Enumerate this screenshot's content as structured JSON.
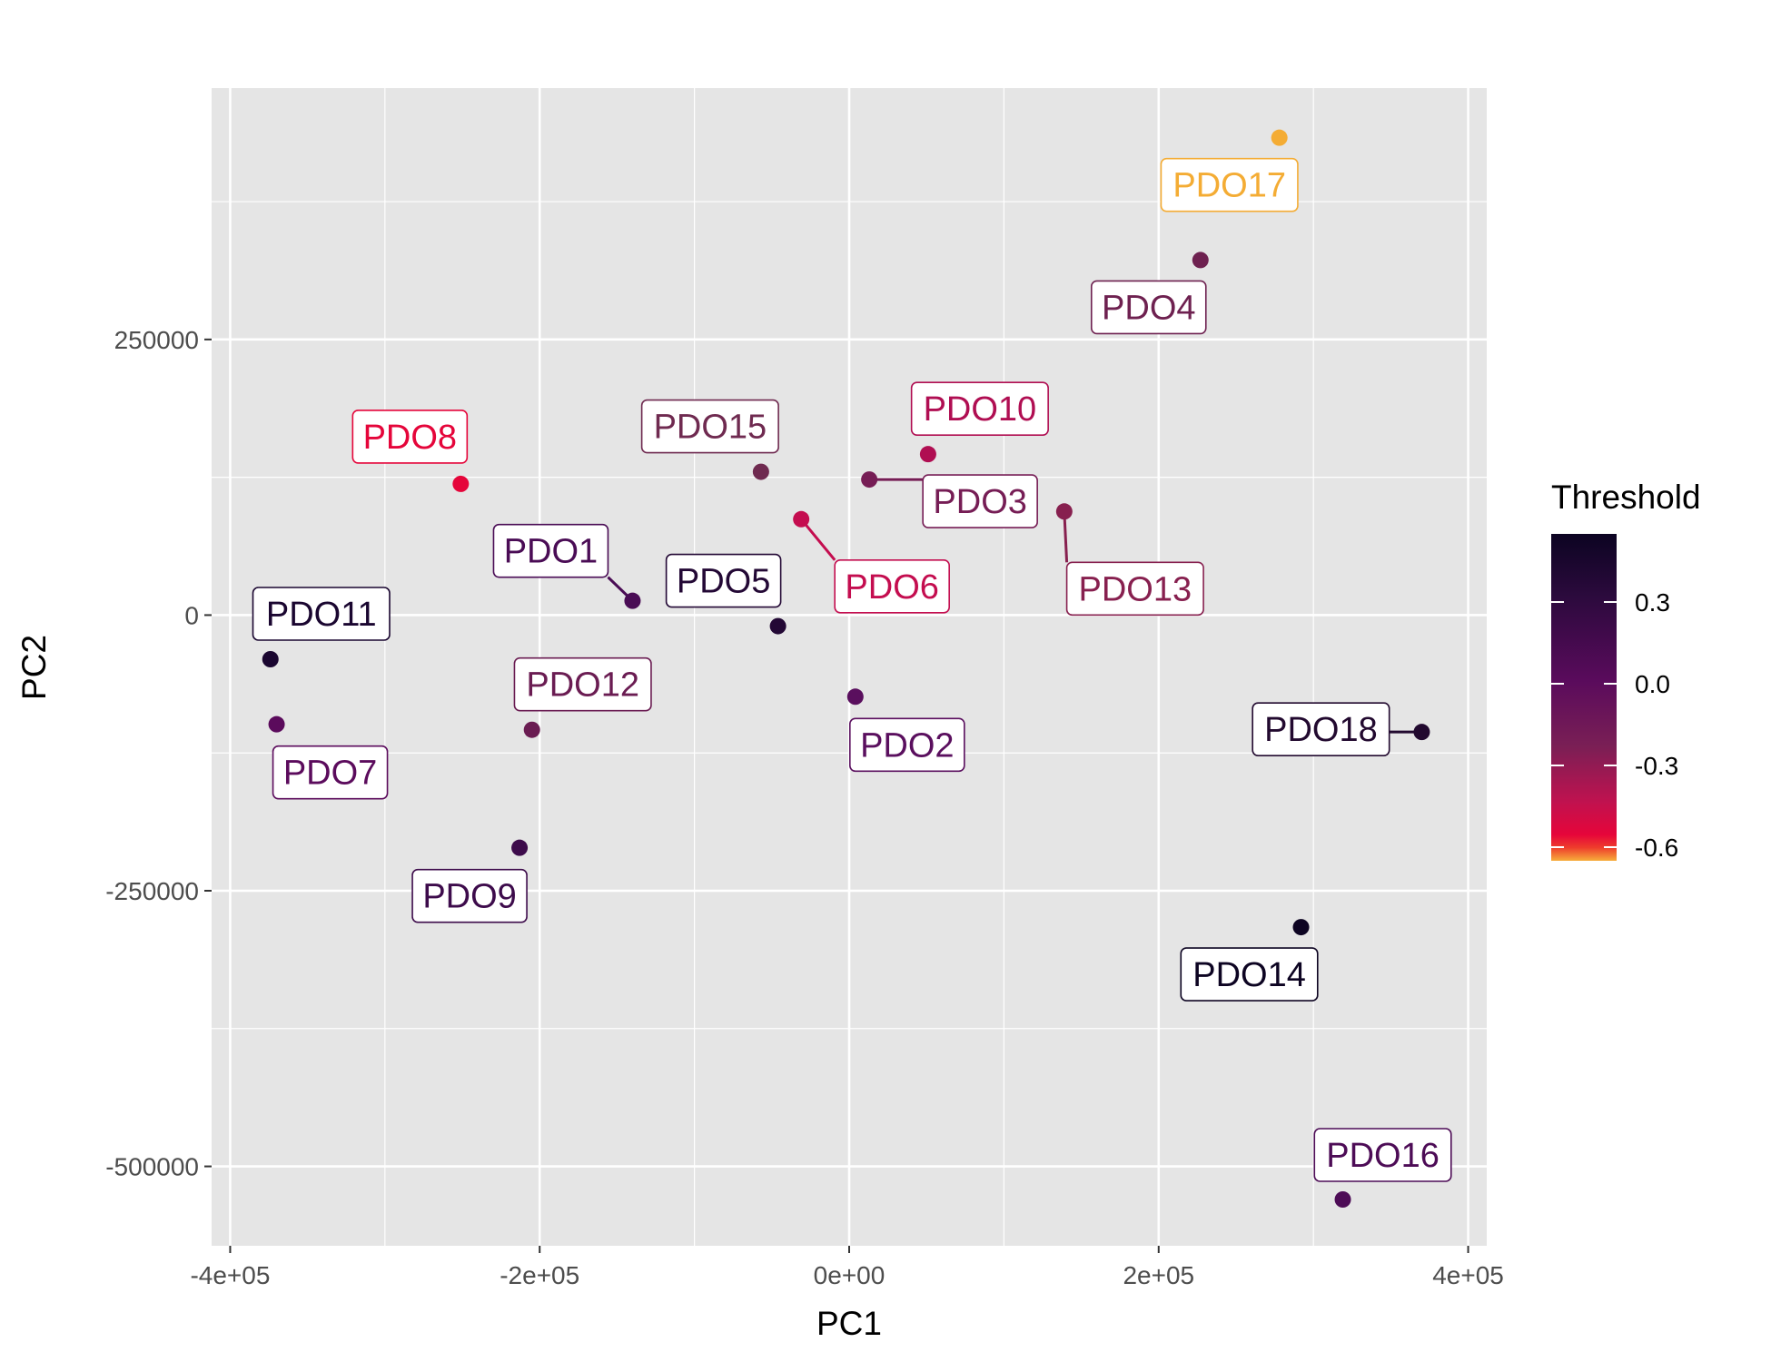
{
  "chart_data": {
    "type": "scatter",
    "xlabel": "PC1",
    "ylabel": "PC2",
    "xlim": [
      -412000,
      412000
    ],
    "ylim": [
      -572000,
      478000
    ],
    "x_ticks": [
      -400000,
      -200000,
      0,
      200000,
      400000
    ],
    "x_tick_labels": [
      "-4e+05",
      "-2e+05",
      "0e+00",
      "2e+05",
      "4e+05"
    ],
    "y_ticks": [
      250000,
      0,
      -250000,
      -500000
    ],
    "y_tick_labels": [
      "250000",
      "0",
      "-250000",
      "-500000"
    ],
    "grid": true,
    "legend": {
      "title": "Threshold",
      "placement": "right",
      "range": [
        -0.65,
        0.55
      ],
      "breaks": [
        0.3,
        0.0,
        -0.3,
        -0.6
      ],
      "break_labels": [
        "0.3",
        "0.0",
        "-0.3",
        "-0.6"
      ]
    },
    "points": [
      {
        "label": "PDO1",
        "x": -140000,
        "y": 13000,
        "color": "#4a0c55"
      },
      {
        "label": "PDO2",
        "x": 4000,
        "y": -74000,
        "color": "#5a0f5e"
      },
      {
        "label": "PDO3",
        "x": 13000,
        "y": 123000,
        "color": "#761d55"
      },
      {
        "label": "PDO4",
        "x": 227000,
        "y": 322000,
        "color": "#6e2150"
      },
      {
        "label": "PDO5",
        "x": -46000,
        "y": -10000,
        "color": "#230835"
      },
      {
        "label": "PDO6",
        "x": -31000,
        "y": 87000,
        "color": "#c40d4f"
      },
      {
        "label": "PDO7",
        "x": -370000,
        "y": -99000,
        "color": "#5b0b5c"
      },
      {
        "label": "PDO8",
        "x": -251000,
        "y": 119000,
        "color": "#e5053a"
      },
      {
        "label": "PDO9",
        "x": -213000,
        "y": -211000,
        "color": "#3d0b4b"
      },
      {
        "label": "PDO10",
        "x": 51000,
        "y": 146000,
        "color": "#b00e52"
      },
      {
        "label": "PDO11",
        "x": -374000,
        "y": -40000,
        "color": "#1a0630"
      },
      {
        "label": "PDO12",
        "x": -205000,
        "y": -104000,
        "color": "#6a1c52"
      },
      {
        "label": "PDO13",
        "x": 139000,
        "y": 94000,
        "color": "#87204f"
      },
      {
        "label": "PDO14",
        "x": 292000,
        "y": -283000,
        "color": "#0d0422"
      },
      {
        "label": "PDO15",
        "x": -57000,
        "y": 130000,
        "color": "#6f2a50"
      },
      {
        "label": "PDO16",
        "x": 319000,
        "y": -530000,
        "color": "#4d0c56"
      },
      {
        "label": "PDO17",
        "x": 278000,
        "y": 433000,
        "color": "#f4ac34"
      },
      {
        "label": "PDO18",
        "x": 370000,
        "y": -106000,
        "color": "#22092f"
      }
    ]
  }
}
